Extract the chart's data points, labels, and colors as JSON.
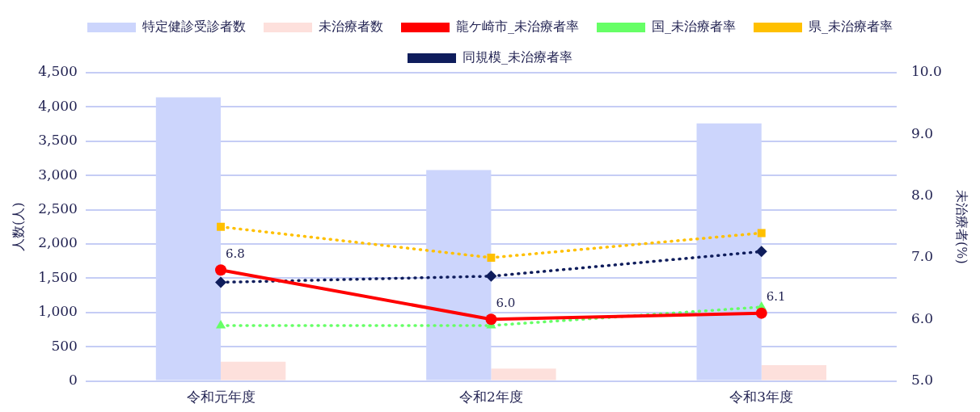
{
  "chart_data": {
    "type": "bar",
    "categories": [
      "令和元年度",
      "令和2年度",
      "令和3年度"
    ],
    "ylabel": "人数(人)",
    "y2label": "未治療者(%)",
    "ylim": [
      0,
      4500
    ],
    "yticks": [
      0,
      500,
      {
        "value": 1000,
        "label": "1,000"
      },
      {
        "value": 1500,
        "label": "1,500"
      },
      {
        "value": 2000,
        "label": "2,000"
      },
      {
        "value": 2500,
        "label": "2,500"
      },
      {
        "value": 3000,
        "label": "3,000"
      },
      {
        "value": 3500,
        "label": "3,500"
      },
      {
        "value": 4000,
        "label": "4,000"
      },
      {
        "value": 4500,
        "label": "4,500"
      }
    ],
    "y2lim": [
      5,
      10
    ],
    "y2ticks": [
      {
        "value": 5,
        "label": "5.0"
      },
      {
        "value": 6,
        "label": "6.0"
      },
      {
        "value": 7,
        "label": "7.0"
      },
      {
        "value": 8,
        "label": "8.0"
      },
      {
        "value": 9,
        "label": "9.0"
      },
      {
        "value": 10,
        "label": "10.0"
      }
    ],
    "grid": "y",
    "legend": "top",
    "series": [
      {
        "name": "特定健診受診者数",
        "color": "#ccd5fc",
        "values": [
          4140,
          3080,
          3760
        ]
      },
      {
        "name": "未治療者数",
        "color": "#fde0dc",
        "values": [
          280,
          180,
          230
        ]
      },
      {
        "name": "龍ケ崎市_未治療者率",
        "type": "line",
        "axis": "y2",
        "color": "#ff0000",
        "marker": "circle",
        "line_style": "solid",
        "values": [
          6.8,
          6.0,
          6.1
        ],
        "value_labels": [
          "6.8",
          "6.0",
          "6.1"
        ]
      },
      {
        "name": "国_未治療者率",
        "type": "line",
        "axis": "y2",
        "color": "#66ff66",
        "marker": "triangle",
        "line_style": "dotted",
        "values": [
          5.9,
          5.9,
          6.2
        ]
      },
      {
        "name": "県_未治療者率",
        "type": "line",
        "axis": "y2",
        "color": "#ffc000",
        "marker": "square",
        "line_style": "dotted",
        "values": [
          7.5,
          7.0,
          7.4
        ]
      },
      {
        "name": "同規模_未治療者率",
        "type": "line",
        "axis": "y2",
        "color": "#0f1d5c",
        "marker": "diamond",
        "line_style": "dotted",
        "values": [
          6.6,
          6.7,
          7.1
        ]
      }
    ]
  }
}
